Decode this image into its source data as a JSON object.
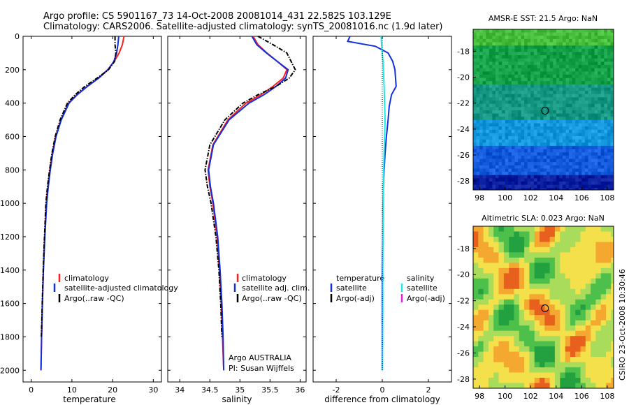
{
  "header": {
    "line1": "Argo profile: CS 5901167_73 14-Oct-2008 20081014_431 22.582S 103.129E",
    "line2": "Climatology: CARS2006. Satellite-adjusted climatology: synTS_20081016.nc (1.9d later)"
  },
  "colors": {
    "climatology": "#ff2020",
    "satellite": "#1030e0",
    "argo": "#000000",
    "salinity_sat": "#20e8e8",
    "salinity_argo": "#e020e0"
  },
  "panel_labels": {
    "argo_country": "Argo AUSTRALIA",
    "pi": "PI: Susan Wijffels",
    "stamp": "CSIRO 23-Oct-2008 10:30:46",
    "sst_title": "AMSR-E SST: 21.5 Argo: NaN",
    "sla_title": "Altimetric SLA: 0.023 Argo: NaN"
  },
  "chart_data": [
    {
      "type": "line",
      "id": "temperature",
      "xlabel": "temperature",
      "ylabel": "",
      "xlim": [
        -2,
        32
      ],
      "ylim": [
        2070,
        0
      ],
      "xticks": [
        0,
        10,
        20,
        30
      ],
      "yticks": [
        0,
        200,
        400,
        600,
        800,
        1000,
        1200,
        1400,
        1600,
        1800,
        2000
      ],
      "legend": [
        "climatology",
        "satellite-adjusted climatology",
        "Argo(..raw -QC)"
      ],
      "series": [
        {
          "name": "climatology",
          "color": "#ff2020",
          "style": "solid",
          "x": [
            22.8,
            22.4,
            21.6,
            20.4,
            18.8,
            16.5,
            13.8,
            11.2,
            9.2,
            7.3,
            6.0,
            5.2,
            4.6,
            4.1,
            3.7,
            3.3,
            3.0,
            2.75,
            2.55,
            2.4
          ],
          "y": [
            0,
            50,
            100,
            150,
            200,
            250,
            300,
            350,
            400,
            500,
            600,
            700,
            800,
            900,
            1000,
            1200,
            1400,
            1600,
            1800,
            2000
          ]
        },
        {
          "name": "satellite-adjusted climatology",
          "color": "#1030e0",
          "style": "solid",
          "x": [
            21.5,
            21.3,
            21.0,
            20.3,
            18.9,
            16.6,
            13.8,
            11.3,
            9.3,
            7.4,
            6.1,
            5.3,
            4.7,
            4.2,
            3.8,
            3.35,
            3.0,
            2.75,
            2.55,
            2.4
          ],
          "y": [
            0,
            50,
            100,
            150,
            200,
            250,
            300,
            350,
            400,
            500,
            600,
            700,
            800,
            900,
            1000,
            1200,
            1400,
            1600,
            1800,
            2000
          ]
        },
        {
          "name": "Argo(..raw -QC)",
          "color": "#000000",
          "style": "dashdot",
          "x": [
            20.6,
            20.6,
            20.8,
            20.5,
            19.0,
            16.2,
            13.2,
            10.8,
            8.9,
            7.1,
            5.9,
            5.1,
            4.5,
            4.0,
            3.6,
            3.25,
            2.95,
            2.7,
            2.5
          ],
          "y": [
            0,
            50,
            100,
            150,
            200,
            250,
            300,
            350,
            400,
            500,
            600,
            700,
            800,
            900,
            1000,
            1200,
            1400,
            1600,
            1800
          ]
        }
      ]
    },
    {
      "type": "line",
      "id": "salinity",
      "xlabel": "salinity",
      "ylabel": "",
      "xlim": [
        33.8,
        36.1
      ],
      "ylim": [
        2070,
        0
      ],
      "xticks": [
        34,
        34.5,
        35,
        35.5,
        36
      ],
      "legend": [
        "climatology",
        "satellite adj. clim.",
        "Argo(..raw -QC)"
      ],
      "series": [
        {
          "name": "climatology",
          "color": "#ff2020",
          "style": "solid",
          "x": [
            35.22,
            35.3,
            35.45,
            35.62,
            35.78,
            35.72,
            35.55,
            35.35,
            35.1,
            34.8,
            34.55,
            34.47,
            34.5,
            34.55,
            34.62,
            34.66,
            34.69,
            34.71,
            34.73
          ],
          "y": [
            0,
            50,
            100,
            150,
            200,
            250,
            300,
            350,
            400,
            500,
            650,
            800,
            900,
            1000,
            1200,
            1400,
            1600,
            1800,
            2000
          ]
        },
        {
          "name": "satellite adj. clim.",
          "color": "#1030e0",
          "style": "solid",
          "x": [
            35.2,
            35.28,
            35.44,
            35.62,
            35.8,
            35.76,
            35.6,
            35.4,
            35.15,
            34.82,
            34.56,
            34.48,
            34.51,
            34.56,
            34.63,
            34.67,
            34.7,
            34.72,
            34.73
          ],
          "y": [
            0,
            50,
            100,
            150,
            200,
            250,
            300,
            350,
            400,
            500,
            650,
            800,
            900,
            1000,
            1200,
            1400,
            1600,
            1800,
            2000
          ]
        },
        {
          "name": "Argo(..raw -QC)",
          "color": "#000000",
          "style": "dashdot",
          "x": [
            35.3,
            35.55,
            35.78,
            35.85,
            35.92,
            35.82,
            35.6,
            35.3,
            35.05,
            34.75,
            34.5,
            34.42,
            34.46,
            34.52,
            34.6,
            34.65,
            34.68,
            34.7
          ],
          "y": [
            0,
            50,
            100,
            150,
            200,
            250,
            300,
            350,
            400,
            500,
            650,
            800,
            900,
            1000,
            1200,
            1400,
            1600,
            1800
          ]
        }
      ]
    },
    {
      "type": "line",
      "id": "difference",
      "xlabel": "difference from climatology",
      "ylabel": "",
      "xlim": [
        -3,
        3
      ],
      "ylim": [
        2070,
        0
      ],
      "xticks": [
        -2,
        0,
        2
      ],
      "legend_left": [
        "temperature",
        "satellite",
        "Argo(-adj)"
      ],
      "legend_right": [
        "salinity",
        "satellite",
        "Argo(-adj)"
      ],
      "series": [
        {
          "name": "temperature satellite",
          "color": "#1030e0",
          "style": "solid",
          "x": [
            -1.4,
            -1.5,
            -0.3,
            0.25,
            0.45,
            0.55,
            0.6,
            0.4,
            0.3,
            0.25,
            0.18,
            0.12,
            0.08,
            0.05,
            0.03,
            0.02,
            0.0,
            0.0,
            0.0
          ],
          "y": [
            0,
            30,
            60,
            100,
            150,
            200,
            300,
            350,
            420,
            500,
            600,
            700,
            800,
            900,
            1000,
            1200,
            1400,
            1600,
            2000
          ]
        },
        {
          "name": "salinity satellite",
          "color": "#20e8e8",
          "style": "solid",
          "x": [
            -0.05,
            -0.03,
            0.0,
            0.03,
            0.05,
            0.08,
            0.1,
            0.12,
            0.1,
            0.08,
            0.06,
            0.05,
            0.04,
            0.03,
            0.02,
            0.02,
            0.01
          ],
          "y": [
            0,
            50,
            100,
            150,
            200,
            300,
            400,
            500,
            600,
            700,
            800,
            900,
            1000,
            1200,
            1400,
            1600,
            2000
          ]
        },
        {
          "name": "zero line",
          "color": "#000000",
          "style": "dotted",
          "x": [
            0,
            0
          ],
          "y": [
            0,
            2000
          ]
        }
      ]
    },
    {
      "type": "heatmap",
      "id": "sst_map",
      "title": "AMSR-E SST: 21.5 Argo: NaN",
      "xlim": [
        97.5,
        108.5
      ],
      "ylim": [
        -28.7,
        -16.3
      ],
      "xticks": [
        98,
        100,
        102,
        104,
        106,
        108
      ],
      "yticks": [
        -18,
        -20,
        -22,
        -24,
        -26,
        -28
      ],
      "marker": {
        "x": 103.129,
        "y": -22.582
      }
    },
    {
      "type": "heatmap",
      "id": "sla_map",
      "title": "Altimetric SLA: 0.023 Argo: NaN",
      "xlim": [
        97.5,
        108.5
      ],
      "ylim": [
        -28.7,
        -16.3
      ],
      "xticks": [
        98,
        100,
        102,
        104,
        106,
        108
      ],
      "yticks": [
        -18,
        -20,
        -22,
        -24,
        -26,
        -28
      ],
      "marker": {
        "x": 103.129,
        "y": -22.582
      }
    }
  ]
}
